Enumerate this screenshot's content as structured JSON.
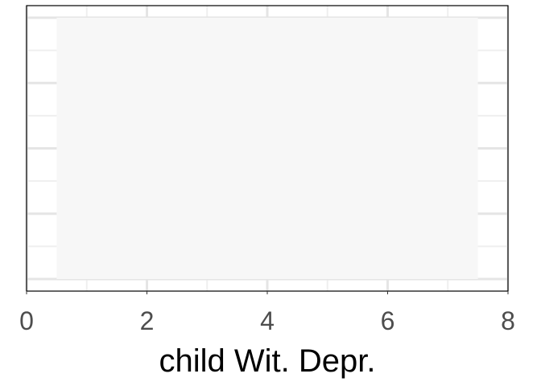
{
  "chart_data": {
    "type": "bar",
    "title": "",
    "xlabel": "child Wit. Depr.",
    "ylabel": "",
    "xlim": [
      0,
      8
    ],
    "x_ticks": [
      0,
      2,
      4,
      6,
      8
    ],
    "x_tick_labels": [
      "0",
      "2",
      "4",
      "6",
      "8"
    ],
    "y_ticks_shown": false,
    "y_gridline_count": 8,
    "grid": true,
    "bars": [
      {
        "x_start": 0.5,
        "x_end": 7.5,
        "note_fill": "#f7f7f7"
      }
    ],
    "colors": {
      "panel_border": "#000000",
      "grid_major": "#e5e5e5",
      "grid_minor": "#efefef",
      "bar_fill": "#f7f7f7",
      "tick_label": "#4d4d4d",
      "axis_title": "#000000"
    }
  }
}
